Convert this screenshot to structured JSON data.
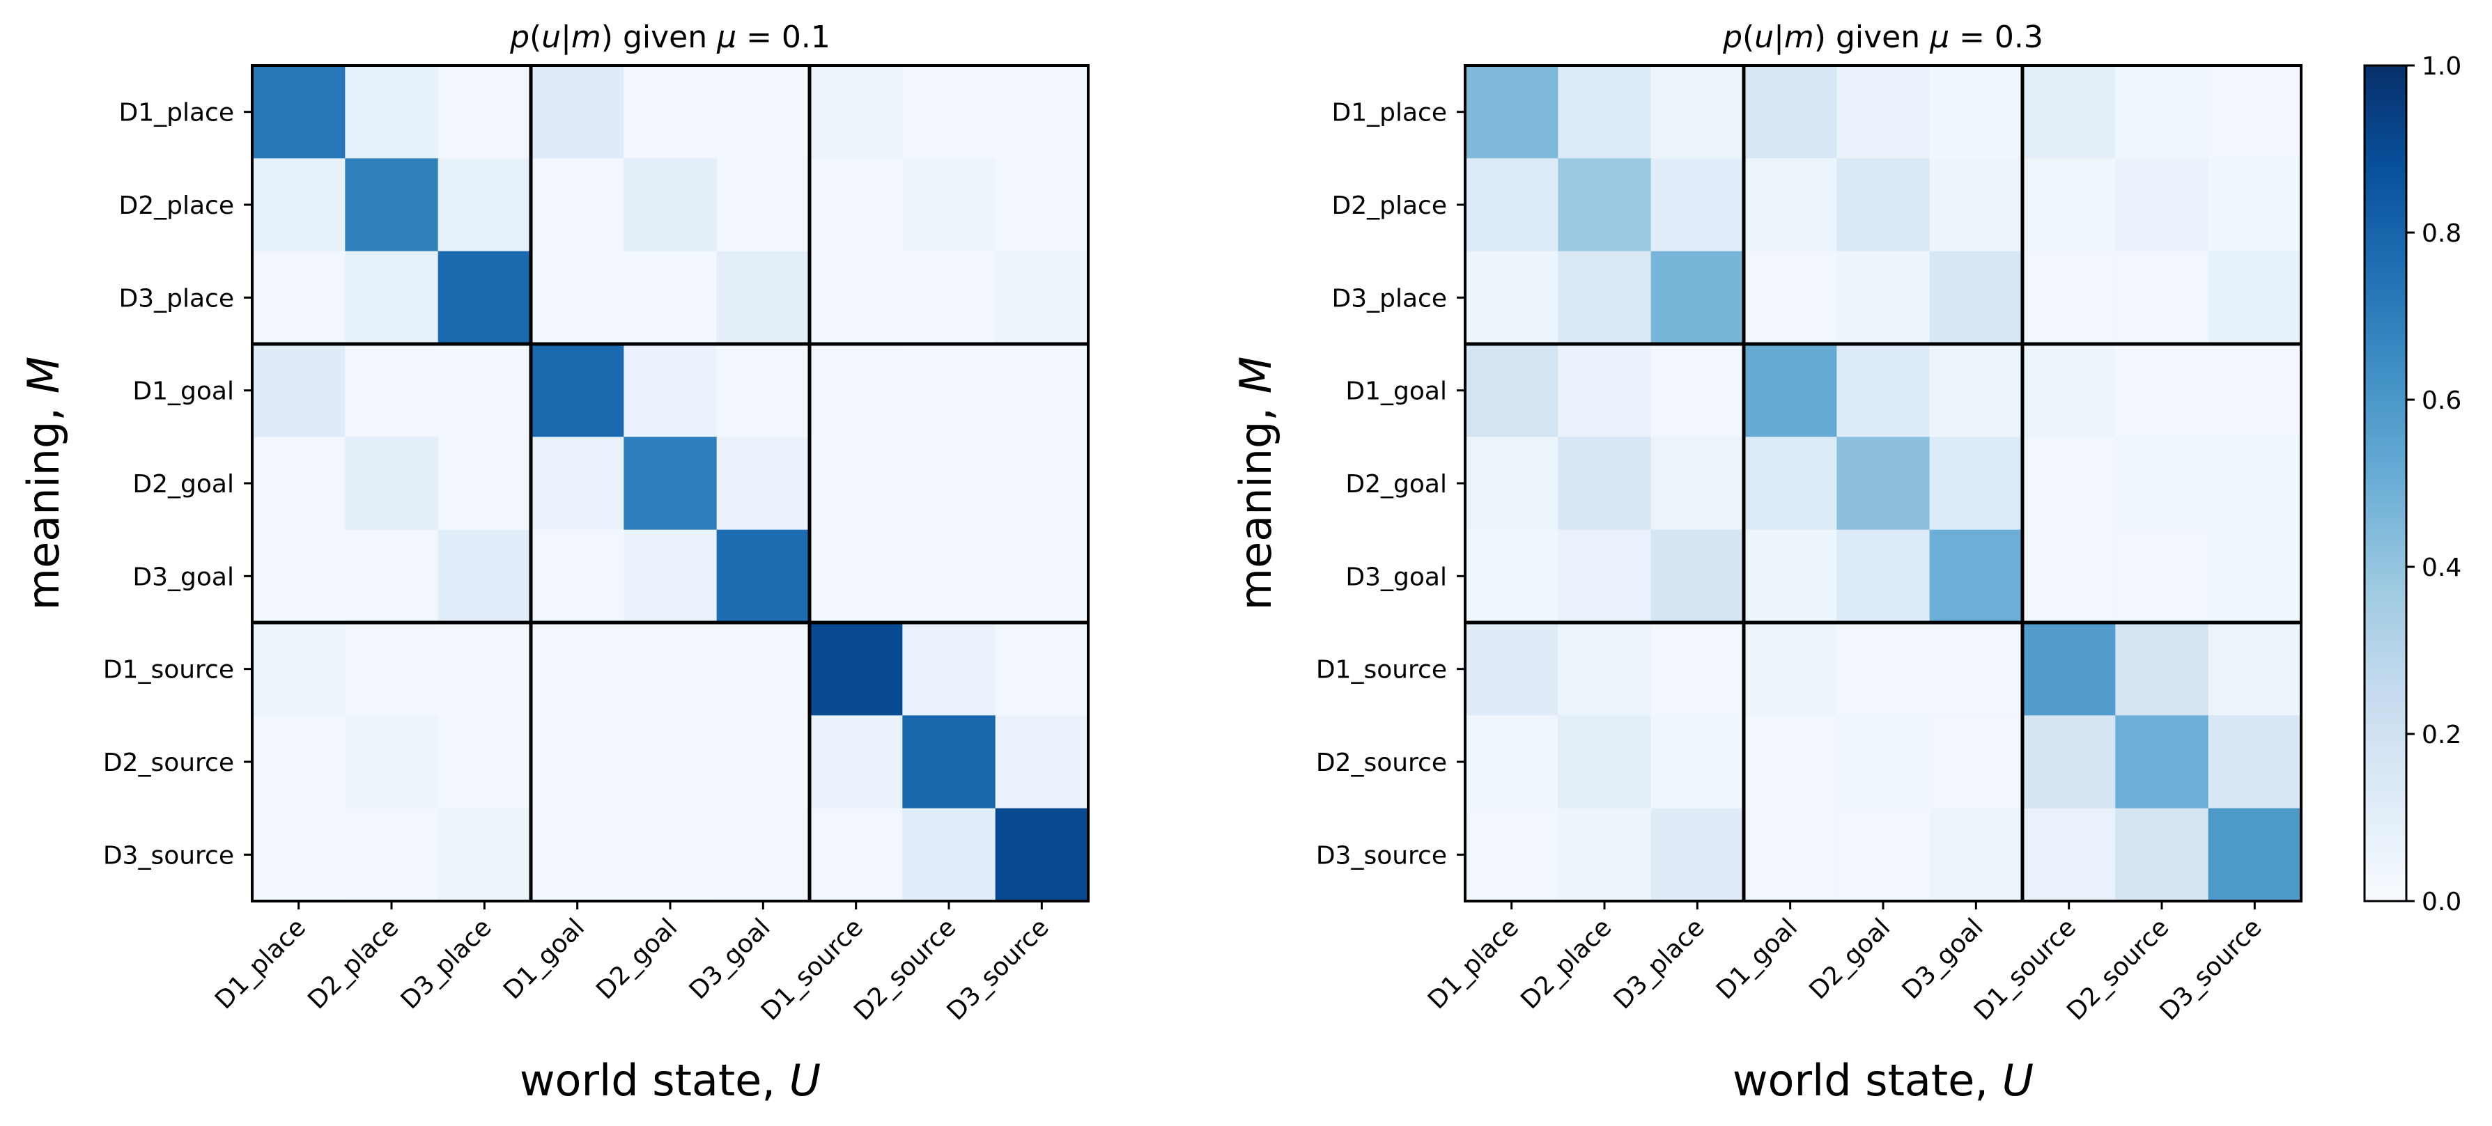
{
  "chart_data": [
    {
      "type": "heatmap",
      "title": "p(u|m) given μ = 0.1",
      "title_parts": {
        "p": "p",
        "open": "(",
        "u": "u",
        "bar": "|",
        "m": "m",
        "close": ")",
        "given": " given ",
        "mu": "μ",
        "eq": " = 0.1"
      },
      "xlabel": "world state,",
      "xlabel_var": "U",
      "ylabel": "meaning,",
      "ylabel_var": "M",
      "x_categories": [
        "D1_place",
        "D2_place",
        "D3_place",
        "D1_goal",
        "D2_goal",
        "D3_goal",
        "D1_source",
        "D2_source",
        "D3_source"
      ],
      "y_categories": [
        "D1_place",
        "D2_place",
        "D3_place",
        "D1_goal",
        "D2_goal",
        "D3_goal",
        "D1_source",
        "D2_source",
        "D3_source"
      ],
      "block_separators_after": [
        3,
        6
      ],
      "values": [
        [
          0.73,
          0.08,
          0.03,
          0.12,
          0.03,
          0.02,
          0.06,
          0.03,
          0.02
        ],
        [
          0.08,
          0.69,
          0.08,
          0.03,
          0.1,
          0.03,
          0.02,
          0.05,
          0.02
        ],
        [
          0.03,
          0.08,
          0.78,
          0.02,
          0.02,
          0.1,
          0.02,
          0.02,
          0.05
        ],
        [
          0.12,
          0.03,
          0.02,
          0.78,
          0.07,
          0.03,
          0.03,
          0.02,
          0.02
        ],
        [
          0.03,
          0.1,
          0.03,
          0.07,
          0.7,
          0.07,
          0.02,
          0.02,
          0.02
        ],
        [
          0.02,
          0.03,
          0.11,
          0.03,
          0.07,
          0.77,
          0.02,
          0.02,
          0.02
        ],
        [
          0.06,
          0.03,
          0.02,
          0.02,
          0.02,
          0.02,
          0.9,
          0.07,
          0.03
        ],
        [
          0.02,
          0.05,
          0.02,
          0.02,
          0.02,
          0.02,
          0.07,
          0.79,
          0.07
        ],
        [
          0.02,
          0.03,
          0.06,
          0.02,
          0.02,
          0.03,
          0.03,
          0.11,
          0.9
        ]
      ]
    },
    {
      "type": "heatmap",
      "title": "p(u|m) given μ = 0.3",
      "title_parts": {
        "p": "p",
        "open": "(",
        "u": "u",
        "bar": "|",
        "m": "m",
        "close": ")",
        "given": " given ",
        "mu": "μ",
        "eq": " = 0.3"
      },
      "xlabel": "world state,",
      "xlabel_var": "U",
      "ylabel": "meaning,",
      "ylabel_var": "M",
      "x_categories": [
        "D1_place",
        "D2_place",
        "D3_place",
        "D1_goal",
        "D2_goal",
        "D3_goal",
        "D1_source",
        "D2_source",
        "D3_source"
      ],
      "y_categories": [
        "D1_place",
        "D2_place",
        "D3_place",
        "D1_goal",
        "D2_goal",
        "D3_goal",
        "D1_source",
        "D2_source",
        "D3_source"
      ],
      "block_separators_after": [
        3,
        6
      ],
      "values": [
        [
          0.45,
          0.13,
          0.05,
          0.16,
          0.07,
          0.04,
          0.09,
          0.04,
          0.03
        ],
        [
          0.13,
          0.38,
          0.11,
          0.05,
          0.14,
          0.05,
          0.04,
          0.07,
          0.04
        ],
        [
          0.05,
          0.14,
          0.47,
          0.03,
          0.05,
          0.16,
          0.03,
          0.03,
          0.08
        ],
        [
          0.18,
          0.07,
          0.03,
          0.52,
          0.13,
          0.05,
          0.05,
          0.03,
          0.03
        ],
        [
          0.06,
          0.16,
          0.06,
          0.13,
          0.42,
          0.13,
          0.03,
          0.04,
          0.04
        ],
        [
          0.04,
          0.07,
          0.17,
          0.05,
          0.13,
          0.5,
          0.03,
          0.03,
          0.04
        ],
        [
          0.12,
          0.05,
          0.03,
          0.05,
          0.03,
          0.03,
          0.58,
          0.17,
          0.05
        ],
        [
          0.04,
          0.1,
          0.04,
          0.03,
          0.04,
          0.03,
          0.17,
          0.5,
          0.16
        ],
        [
          0.03,
          0.05,
          0.12,
          0.03,
          0.03,
          0.05,
          0.07,
          0.18,
          0.59
        ]
      ]
    }
  ],
  "colorbar": {
    "colormap": "Blues",
    "range": [
      0.0,
      1.0
    ],
    "ticks": [
      "0.0",
      "0.2",
      "0.4",
      "0.6",
      "0.8",
      "1.0"
    ],
    "colors": [
      "#f7fbff",
      "#deebf7",
      "#c6dbef",
      "#9ecae1",
      "#6baed6",
      "#4292c6",
      "#2171b5",
      "#08519c",
      "#08306b"
    ]
  }
}
